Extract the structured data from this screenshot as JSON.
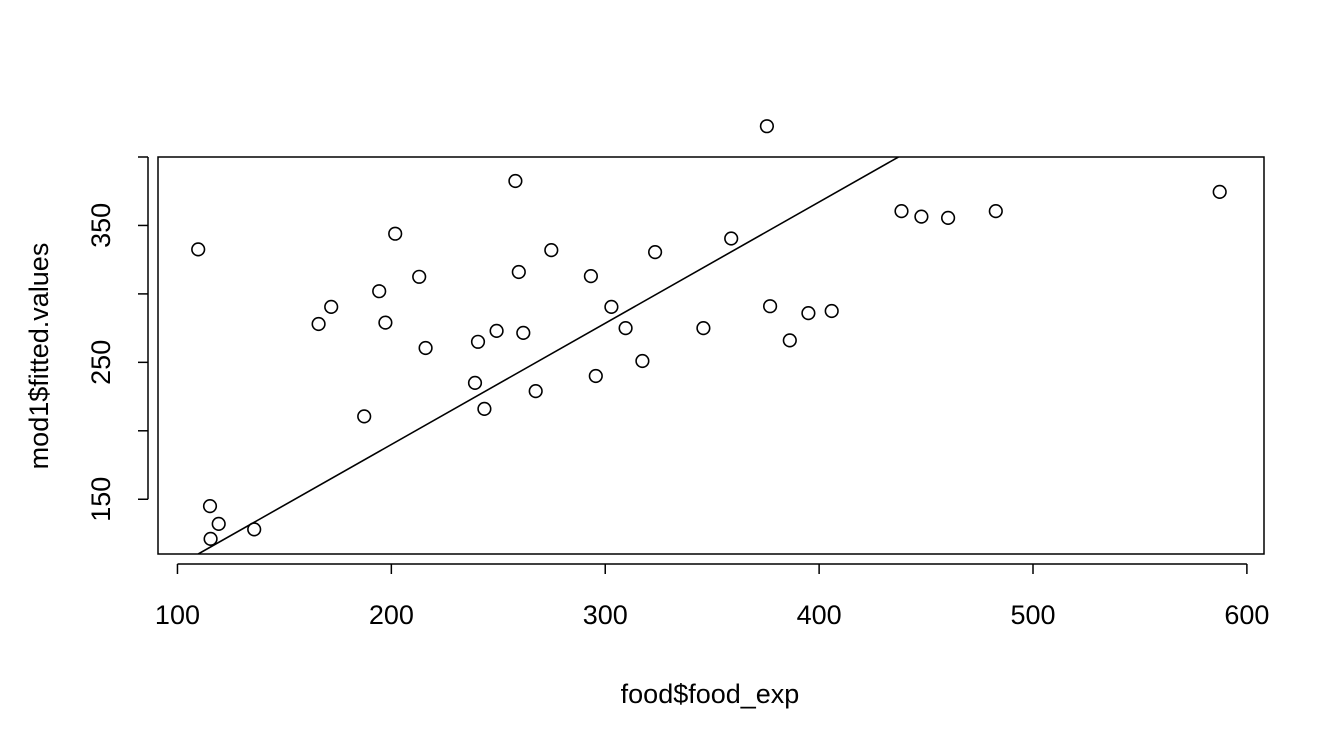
{
  "chart_data": {
    "type": "scatter",
    "xlabel": "food$food_exp",
    "ylabel": "mod1$fitted.values",
    "xlim": [
      90.9,
      608.0
    ],
    "ylim": [
      110,
      400
    ],
    "x_ticks": [
      100,
      200,
      300,
      400,
      500,
      600
    ],
    "y_ticks": [
      150,
      250,
      350
    ],
    "y_minor_ticks": [
      200,
      300,
      400
    ],
    "grid": false,
    "points": [
      [
        109.7,
        332.5
      ],
      [
        115.2,
        145.0
      ],
      [
        115.5,
        121.0
      ],
      [
        119.3,
        132.0
      ],
      [
        135.9,
        128.0
      ],
      [
        166.0,
        278.0
      ],
      [
        171.9,
        290.5
      ],
      [
        187.3,
        210.5
      ],
      [
        194.3,
        302.0
      ],
      [
        197.2,
        279.0
      ],
      [
        201.8,
        344.0
      ],
      [
        213.0,
        312.5
      ],
      [
        216.0,
        260.5
      ],
      [
        239.1,
        235.0
      ],
      [
        240.5,
        265.0
      ],
      [
        243.5,
        216.0
      ],
      [
        249.2,
        273.0
      ],
      [
        258.0,
        382.5
      ],
      [
        259.6,
        316.0
      ],
      [
        261.7,
        271.5
      ],
      [
        267.5,
        229.0
      ],
      [
        274.8,
        332.0
      ],
      [
        293.3,
        313.0
      ],
      [
        295.6,
        240.0
      ],
      [
        302.9,
        290.5
      ],
      [
        309.5,
        275.0
      ],
      [
        317.4,
        251.0
      ],
      [
        323.3,
        330.5
      ],
      [
        345.9,
        275.0
      ],
      [
        358.9,
        340.5
      ],
      [
        375.6,
        422.5
      ],
      [
        377.1,
        291.0
      ],
      [
        386.3,
        266.0
      ],
      [
        395.0,
        286.0
      ],
      [
        405.9,
        287.5
      ],
      [
        438.5,
        360.5
      ],
      [
        447.8,
        356.5
      ],
      [
        460.3,
        355.5
      ],
      [
        482.6,
        360.5
      ],
      [
        587.3,
        374.5
      ]
    ],
    "line": {
      "x": [
        109.7,
        437.1
      ],
      "y": [
        110.0,
        400.0
      ]
    }
  }
}
